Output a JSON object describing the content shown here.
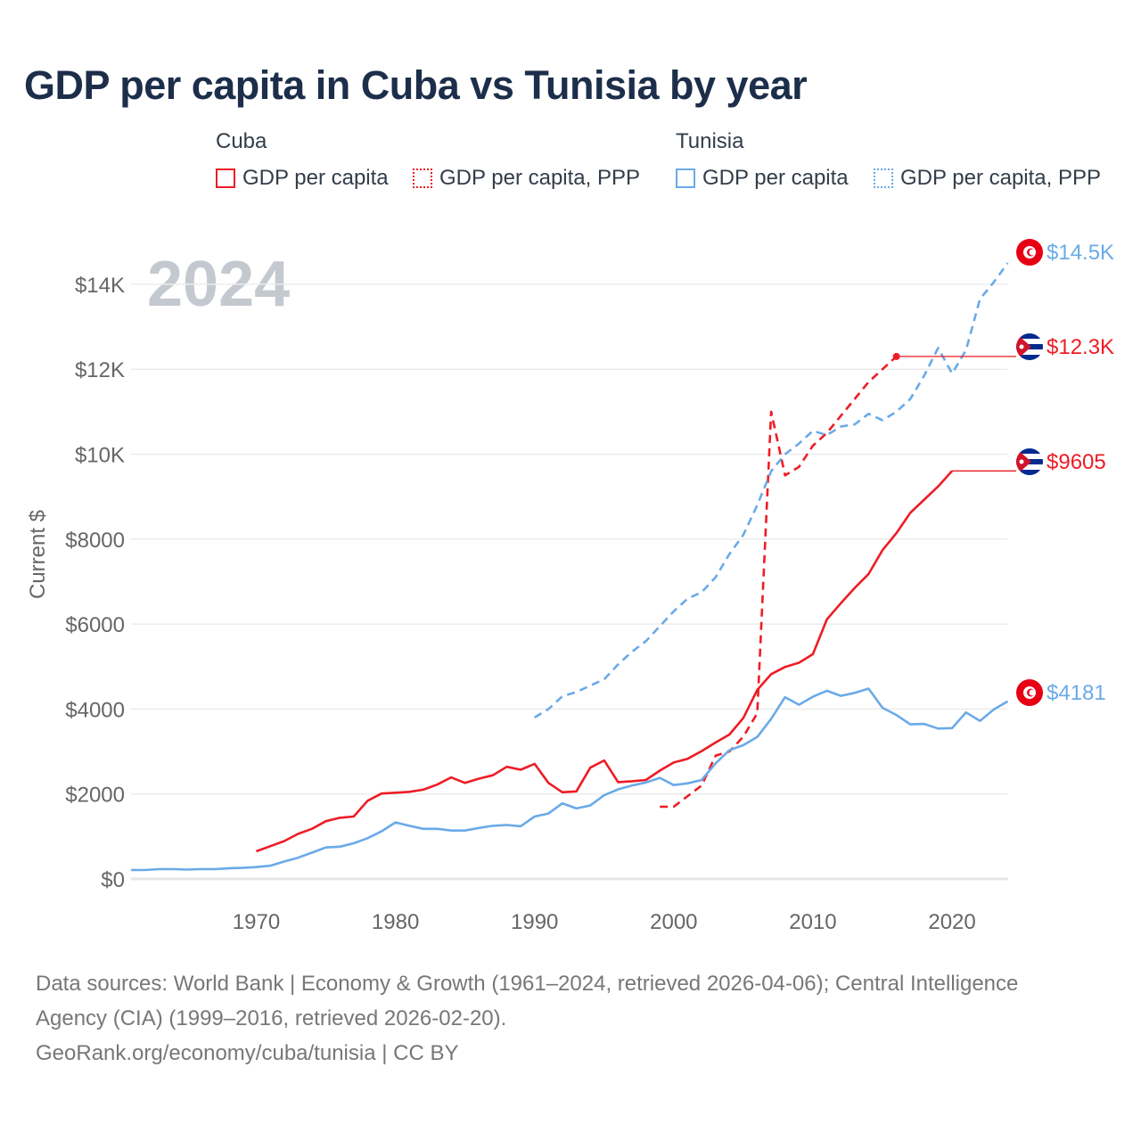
{
  "title": "GDP per capita in Cuba vs Tunisia by year",
  "legend": {
    "groups": [
      "Cuba",
      "Tunisia"
    ],
    "items": [
      "GDP per capita",
      "GDP per capita, PPP",
      "GDP per capita",
      "GDP per capita, PPP"
    ]
  },
  "year_watermark": "2024",
  "footer": {
    "line1": "Data sources: World Bank | Economy & Growth (1961–2024, retrieved 2026-04-06); Central Intelligence",
    "line2": "Agency (CIA) (1999–2016, retrieved 2026-02-20).",
    "line3": "GeoRank.org/economy/cuba/tunisia | CC BY"
  },
  "colors": {
    "cuba": "#ee1c25",
    "tunisia": "#6aaae8"
  },
  "chart_data": {
    "type": "line",
    "title": "GDP per capita in Cuba vs Tunisia by year",
    "xlabel": "",
    "ylabel": "Current $",
    "xlim": [
      1961,
      2024
    ],
    "ylim": [
      0,
      15000
    ],
    "x_ticks": [
      1970,
      1980,
      1990,
      2000,
      2010,
      2020
    ],
    "x_tick_labels": [
      "1970",
      "1980",
      "1990",
      "2000",
      "2010",
      "2020"
    ],
    "y_ticks": [
      0,
      2000,
      4000,
      6000,
      8000,
      10000,
      12000,
      14000
    ],
    "y_tick_labels": [
      "$0",
      "$2000",
      "$4000",
      "$6000",
      "$8000",
      "$10K",
      "$12K",
      "$14K"
    ],
    "grid": true,
    "legend_position": "top",
    "series": [
      {
        "name": "Cuba GDP per capita",
        "country": "cuba",
        "dashed": false,
        "end_label": "$9605",
        "start": 1970,
        "values": [
          650,
          770,
          890,
          1060,
          1180,
          1360,
          1440,
          1470,
          1840,
          2010,
          2030,
          2050,
          2100,
          2220,
          2390,
          2260,
          2360,
          2440,
          2640,
          2570,
          2710,
          2260,
          2040,
          2060,
          2620,
          2790,
          2280,
          2300,
          2330,
          2550,
          2740,
          2830,
          3010,
          3210,
          3400,
          3790,
          4450,
          4820,
          4990,
          5090,
          5290,
          6110,
          6490,
          6850,
          7180,
          7740,
          8140,
          8620,
          8930,
          9240,
          9605
        ]
      },
      {
        "name": "Cuba GDP per capita, PPP",
        "country": "cuba",
        "dashed": true,
        "end_label": "$12.3K",
        "start": 1999,
        "values": [
          1700,
          1700,
          1950,
          2200,
          2900,
          3000,
          3350,
          3900,
          11000,
          9500,
          9700,
          10200,
          10500,
          10900,
          11300,
          11700,
          12000,
          12300
        ]
      },
      {
        "name": "Tunisia GDP per capita",
        "country": "tunisia",
        "dashed": false,
        "end_label": "$4181",
        "start": 1961,
        "values": [
          210,
          210,
          230,
          230,
          220,
          230,
          230,
          250,
          260,
          280,
          310,
          410,
          500,
          620,
          740,
          760,
          840,
          960,
          1120,
          1330,
          1250,
          1180,
          1180,
          1140,
          1140,
          1200,
          1250,
          1270,
          1240,
          1470,
          1540,
          1780,
          1660,
          1730,
          1970,
          2110,
          2200,
          2270,
          2380,
          2210,
          2250,
          2330,
          2720,
          3030,
          3150,
          3340,
          3770,
          4280,
          4100,
          4290,
          4430,
          4310,
          4380,
          4480,
          4030,
          3860,
          3640,
          3650,
          3540,
          3550,
          3920,
          3720,
          3990,
          4181
        ]
      },
      {
        "name": "Tunisia GDP per capita, PPP",
        "country": "tunisia",
        "dashed": true,
        "end_label": "$14.5K",
        "start": 1990,
        "values": [
          3800,
          4000,
          4300,
          4400,
          4550,
          4700,
          5050,
          5350,
          5600,
          5950,
          6300,
          6600,
          6750,
          7100,
          7650,
          8100,
          8800,
          9600,
          10000,
          10250,
          10550,
          10450,
          10650,
          10700,
          10950,
          10800,
          11000,
          11300,
          11850,
          12500,
          11900,
          12450,
          13650,
          14050,
          14500
        ]
      }
    ]
  }
}
